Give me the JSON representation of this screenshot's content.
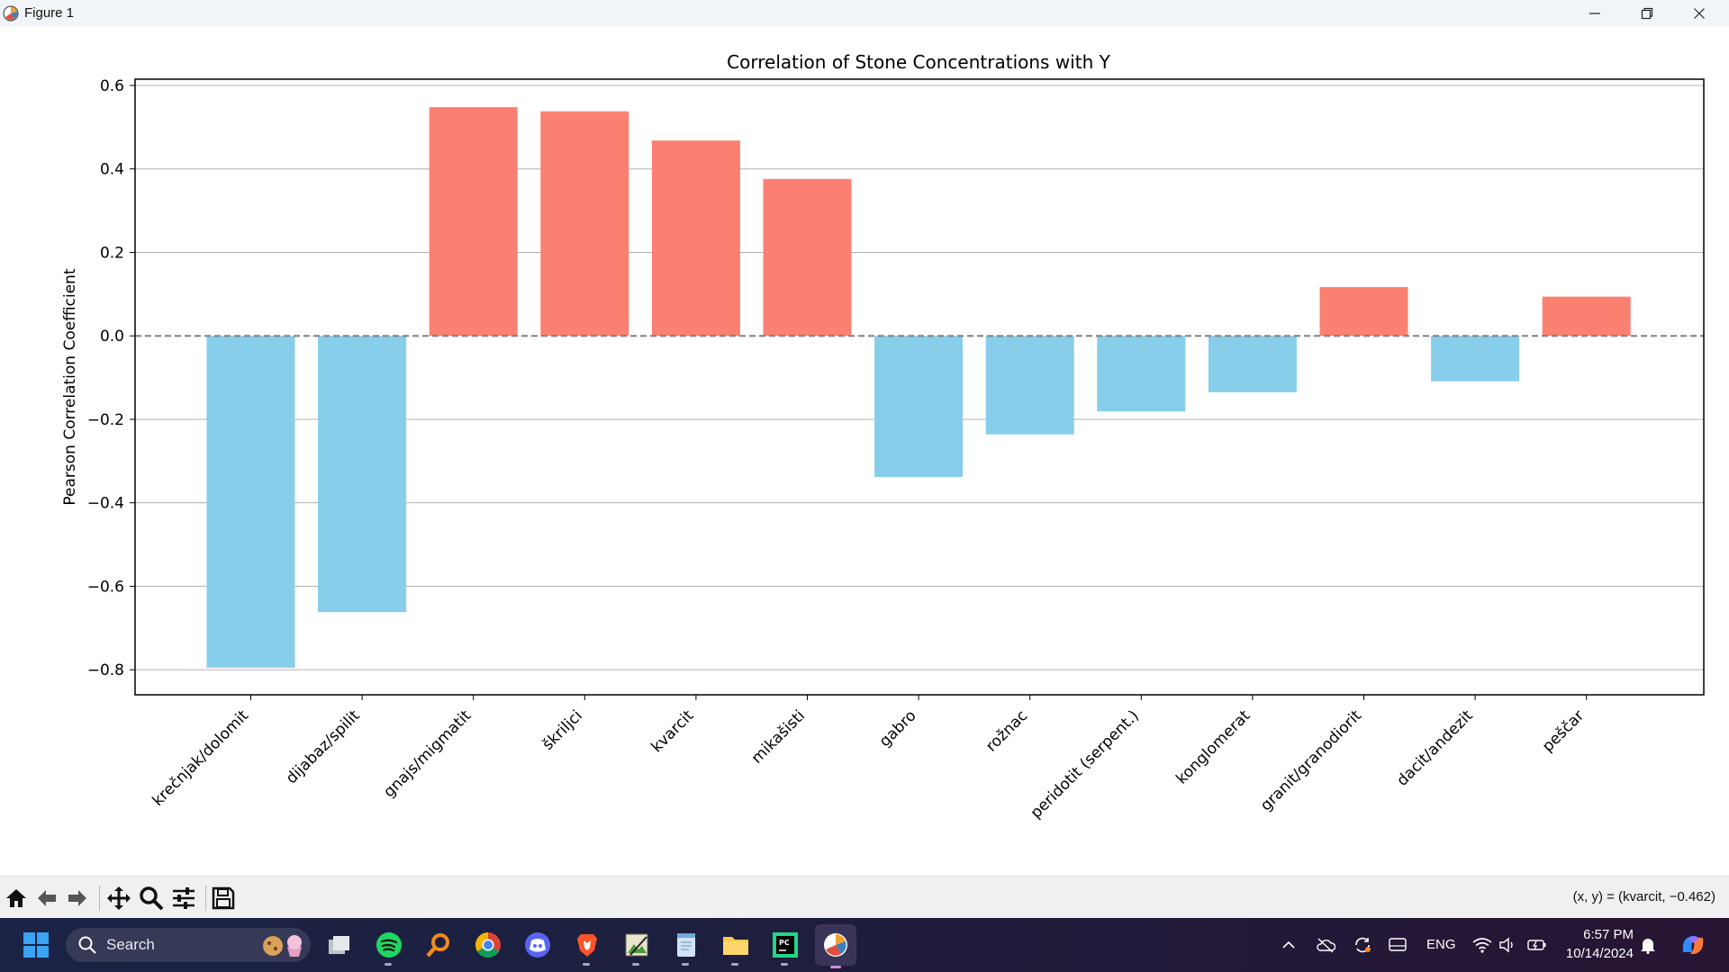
{
  "window": {
    "title": "Figure 1"
  },
  "chart_data": {
    "type": "bar",
    "title": "Correlation of Stone Concentrations with Y",
    "xlabel": "",
    "ylabel": "Pearson Correlation Coefficient",
    "categories": [
      "krečnjak/dolomit",
      "dijabaz/spilit",
      "gnajs/migmatit",
      "škriljci",
      "kvarcit",
      "mikašisti",
      "gabro",
      "rožnac",
      "peridotit (serpent.)",
      "konglomerat",
      "granit/granodiorit",
      "dacit/andezit",
      "peščar"
    ],
    "values": [
      -0.795,
      -0.662,
      0.548,
      0.538,
      0.468,
      0.376,
      -0.338,
      -0.236,
      -0.181,
      -0.135,
      0.117,
      -0.109,
      0.094
    ],
    "yticks": [
      0.6,
      0.4,
      0.2,
      0.0,
      -0.2,
      -0.4,
      -0.6,
      -0.8
    ],
    "ytick_labels": [
      "0.6",
      "0.4",
      "0.2",
      "0.0",
      "−0.2",
      "−0.4",
      "−0.6",
      "−0.8"
    ],
    "ylim": [
      -0.86,
      0.615
    ],
    "grid": "horizontal",
    "zero_line": "dashed",
    "colors": {
      "positive": "#fa8072",
      "negative": "#87ceeb",
      "grid": "#b0b0b0",
      "zero_line": "#808080"
    }
  },
  "toolbar": {
    "buttons": [
      {
        "name": "home-button",
        "icon": "home-icon"
      },
      {
        "name": "back-button",
        "icon": "arrow-left-icon"
      },
      {
        "name": "forward-button",
        "icon": "arrow-right-icon"
      },
      {
        "name": "pan-button",
        "icon": "move-icon"
      },
      {
        "name": "zoom-button",
        "icon": "magnifier-icon"
      },
      {
        "name": "configure-subplots-button",
        "icon": "sliders-icon"
      },
      {
        "name": "save-button",
        "icon": "floppy-icon"
      }
    ],
    "coordinate_readout": "(x, y) = (kvarcit, −0.462)"
  },
  "taskbar": {
    "search_label": "Search",
    "apps": [
      "windows-start",
      "task-view",
      "spotify",
      "search-app",
      "chrome",
      "discord",
      "brave",
      "image-editor",
      "notepad",
      "file-explorer",
      "pycharm",
      "matplotlib-figure"
    ],
    "tray": {
      "language": "ENG",
      "time": "6:57 PM",
      "date": "10/14/2024"
    }
  }
}
